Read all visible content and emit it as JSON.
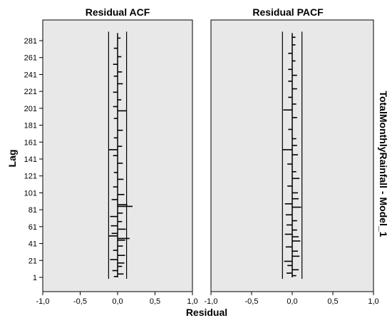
{
  "chart_data": {
    "type": "bar",
    "orientation": "horizontal",
    "panel_label": "TotalMonthlyRainfall - Model_1",
    "xlabel": "Residual",
    "ylabel": "Lag",
    "xlim": [
      -1.0,
      1.0
    ],
    "x_ticks": [
      "-1,0",
      "-0,5",
      "0,0",
      "0,5",
      "1,0"
    ],
    "x_tick_values": [
      -1.0,
      -0.5,
      0.0,
      0.5,
      1.0
    ],
    "y_ticks": [
      "1",
      "21",
      "41",
      "61",
      "81",
      "101",
      "121",
      "141",
      "161",
      "181",
      "201",
      "221",
      "241",
      "261",
      "281"
    ],
    "y_tick_values": [
      1,
      21,
      41,
      61,
      81,
      101,
      121,
      141,
      161,
      181,
      201,
      221,
      241,
      261,
      281
    ],
    "lag_range": [
      1,
      290
    ],
    "background": "#e8e8e8",
    "grid": false,
    "panels": [
      {
        "title": "Residual ACF",
        "confidence_limit": 0.12,
        "series": [
          {
            "lags": [
              2,
              5,
              9,
              14,
              18,
              22,
              27,
              33,
              38,
              45,
              47,
              50,
              53,
              58,
              62,
              67,
              73,
              77,
              85,
              87,
              93,
              99,
              108,
              117,
              125,
              136,
              145,
              152,
              156,
              166,
              175,
              189,
              198,
              203,
              211,
              220,
              230,
              239,
              244,
              253,
              262,
              272,
              284
            ],
            "values": [
              -0.05,
              0.08,
              -0.07,
              0.06,
              0.09,
              -0.1,
              0.1,
              -0.06,
              0.07,
              0.1,
              0.16,
              -0.12,
              -0.08,
              0.11,
              -0.09,
              0.06,
              -0.1,
              0.07,
              0.2,
              0.13,
              -0.08,
              0.09,
              -0.06,
              0.08,
              -0.05,
              0.07,
              -0.06,
              -0.12,
              0.06,
              -0.05,
              0.07,
              -0.05,
              0.12,
              -0.06,
              0.05,
              -0.06,
              0.07,
              -0.05,
              0.06,
              -0.06,
              0.05,
              -0.05,
              0.04
            ]
          }
        ]
      },
      {
        "title": "Residual PACF",
        "confidence_limit": 0.12,
        "series": [
          {
            "lags": [
              3,
              6,
              10,
              15,
              20,
              26,
              32,
              37,
              44,
              49,
              52,
              57,
              63,
              68,
              75,
              84,
              88,
              94,
              101,
              109,
              118,
              126,
              135,
              146,
              152,
              157,
              165,
              176,
              190,
              199,
              206,
              214,
              224,
              233,
              240,
              247,
              257,
              266,
              276,
              285
            ],
            "values": [
              0.05,
              -0.07,
              0.08,
              -0.06,
              -0.1,
              0.09,
              0.07,
              -0.08,
              0.1,
              0.08,
              -0.09,
              0.06,
              -0.07,
              0.06,
              -0.08,
              0.11,
              -0.09,
              0.08,
              0.07,
              -0.06,
              0.09,
              0.05,
              -0.06,
              0.07,
              -0.12,
              0.06,
              0.05,
              -0.05,
              0.06,
              -0.11,
              0.05,
              -0.05,
              0.06,
              -0.05,
              0.06,
              -0.05,
              0.04,
              -0.05,
              0.04,
              0.04
            ]
          }
        ]
      }
    ]
  }
}
